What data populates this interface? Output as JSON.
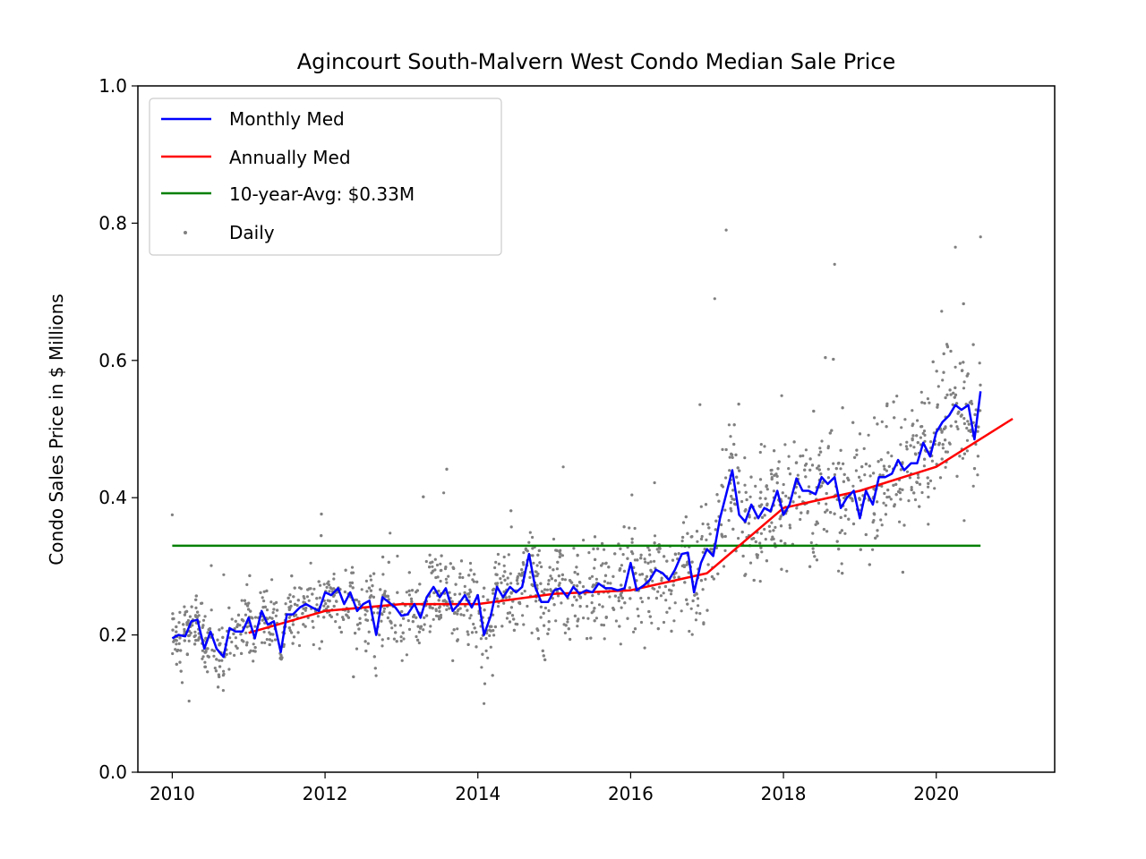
{
  "chart_data": {
    "type": "line",
    "title": "Agincourt South-Malvern West Condo Median Sale Price",
    "xlabel": "",
    "ylabel": "Condo Sales Price in $ Millions",
    "xlim": [
      2009.55,
      2021.55
    ],
    "ylim": [
      0.0,
      1.0
    ],
    "x_ticks": [
      2010,
      2012,
      2014,
      2016,
      2018,
      2020
    ],
    "x_tick_labels": [
      "2010",
      "2012",
      "2014",
      "2016",
      "2018",
      "2020"
    ],
    "y_ticks": [
      0.0,
      0.2,
      0.4,
      0.6,
      0.8,
      1.0
    ],
    "y_tick_labels": [
      "0.0",
      "0.2",
      "0.4",
      "0.6",
      "0.8",
      "1.0"
    ],
    "legend_position": "upper-left",
    "colors": {
      "monthly": "#0000ff",
      "annual": "#ff0000",
      "average": "#008000",
      "daily": "#808080"
    },
    "series": [
      {
        "name": "Monthly Med",
        "kind": "line",
        "color": "#0000ff",
        "points": [
          [
            2010.0,
            0.195
          ],
          [
            2010.08,
            0.2
          ],
          [
            2010.17,
            0.198
          ],
          [
            2010.25,
            0.22
          ],
          [
            2010.33,
            0.222
          ],
          [
            2010.42,
            0.18
          ],
          [
            2010.5,
            0.205
          ],
          [
            2010.58,
            0.18
          ],
          [
            2010.67,
            0.168
          ],
          [
            2010.75,
            0.21
          ],
          [
            2010.83,
            0.205
          ],
          [
            2010.92,
            0.205
          ],
          [
            2011.0,
            0.225
          ],
          [
            2011.08,
            0.195
          ],
          [
            2011.17,
            0.235
          ],
          [
            2011.25,
            0.215
          ],
          [
            2011.33,
            0.22
          ],
          [
            2011.42,
            0.175
          ],
          [
            2011.5,
            0.23
          ],
          [
            2011.58,
            0.23
          ],
          [
            2011.67,
            0.24
          ],
          [
            2011.75,
            0.245
          ],
          [
            2011.83,
            0.24
          ],
          [
            2011.92,
            0.235
          ],
          [
            2012.0,
            0.262
          ],
          [
            2012.08,
            0.258
          ],
          [
            2012.17,
            0.268
          ],
          [
            2012.25,
            0.245
          ],
          [
            2012.33,
            0.262
          ],
          [
            2012.42,
            0.235
          ],
          [
            2012.5,
            0.245
          ],
          [
            2012.58,
            0.25
          ],
          [
            2012.67,
            0.2
          ],
          [
            2012.75,
            0.255
          ],
          [
            2012.83,
            0.248
          ],
          [
            2012.92,
            0.24
          ],
          [
            2013.0,
            0.228
          ],
          [
            2013.08,
            0.23
          ],
          [
            2013.17,
            0.245
          ],
          [
            2013.25,
            0.225
          ],
          [
            2013.33,
            0.255
          ],
          [
            2013.42,
            0.27
          ],
          [
            2013.5,
            0.255
          ],
          [
            2013.58,
            0.268
          ],
          [
            2013.67,
            0.235
          ],
          [
            2013.75,
            0.245
          ],
          [
            2013.83,
            0.258
          ],
          [
            2013.92,
            0.24
          ],
          [
            2014.0,
            0.258
          ],
          [
            2014.08,
            0.2
          ],
          [
            2014.17,
            0.228
          ],
          [
            2014.25,
            0.27
          ],
          [
            2014.33,
            0.255
          ],
          [
            2014.42,
            0.27
          ],
          [
            2014.5,
            0.262
          ],
          [
            2014.58,
            0.27
          ],
          [
            2014.67,
            0.318
          ],
          [
            2014.75,
            0.27
          ],
          [
            2014.83,
            0.248
          ],
          [
            2014.92,
            0.248
          ],
          [
            2015.0,
            0.265
          ],
          [
            2015.08,
            0.268
          ],
          [
            2015.17,
            0.255
          ],
          [
            2015.25,
            0.27
          ],
          [
            2015.33,
            0.26
          ],
          [
            2015.42,
            0.265
          ],
          [
            2015.5,
            0.262
          ],
          [
            2015.58,
            0.275
          ],
          [
            2015.67,
            0.268
          ],
          [
            2015.75,
            0.268
          ],
          [
            2015.83,
            0.265
          ],
          [
            2015.92,
            0.268
          ],
          [
            2016.0,
            0.305
          ],
          [
            2016.08,
            0.265
          ],
          [
            2016.17,
            0.272
          ],
          [
            2016.25,
            0.28
          ],
          [
            2016.33,
            0.295
          ],
          [
            2016.42,
            0.29
          ],
          [
            2016.5,
            0.28
          ],
          [
            2016.58,
            0.295
          ],
          [
            2016.67,
            0.318
          ],
          [
            2016.75,
            0.32
          ],
          [
            2016.83,
            0.262
          ],
          [
            2016.92,
            0.305
          ],
          [
            2017.0,
            0.325
          ],
          [
            2017.08,
            0.315
          ],
          [
            2017.17,
            0.37
          ],
          [
            2017.25,
            0.405
          ],
          [
            2017.33,
            0.44
          ],
          [
            2017.42,
            0.375
          ],
          [
            2017.5,
            0.365
          ],
          [
            2017.58,
            0.39
          ],
          [
            2017.67,
            0.37
          ],
          [
            2017.75,
            0.385
          ],
          [
            2017.83,
            0.38
          ],
          [
            2017.92,
            0.41
          ],
          [
            2018.0,
            0.375
          ],
          [
            2018.08,
            0.39
          ],
          [
            2018.17,
            0.428
          ],
          [
            2018.25,
            0.41
          ],
          [
            2018.33,
            0.41
          ],
          [
            2018.42,
            0.405
          ],
          [
            2018.5,
            0.43
          ],
          [
            2018.58,
            0.42
          ],
          [
            2018.67,
            0.43
          ],
          [
            2018.75,
            0.385
          ],
          [
            2018.83,
            0.4
          ],
          [
            2018.92,
            0.41
          ],
          [
            2019.0,
            0.37
          ],
          [
            2019.08,
            0.41
          ],
          [
            2019.17,
            0.39
          ],
          [
            2019.25,
            0.43
          ],
          [
            2019.33,
            0.43
          ],
          [
            2019.42,
            0.435
          ],
          [
            2019.5,
            0.455
          ],
          [
            2019.58,
            0.44
          ],
          [
            2019.67,
            0.45
          ],
          [
            2019.75,
            0.45
          ],
          [
            2019.83,
            0.48
          ],
          [
            2019.92,
            0.46
          ],
          [
            2020.0,
            0.495
          ],
          [
            2020.08,
            0.51
          ],
          [
            2020.17,
            0.52
          ],
          [
            2020.25,
            0.535
          ],
          [
            2020.33,
            0.528
          ],
          [
            2020.42,
            0.535
          ],
          [
            2020.5,
            0.485
          ],
          [
            2020.58,
            0.555
          ]
        ]
      },
      {
        "name": "Annually Med",
        "kind": "line",
        "color": "#ff0000",
        "points": [
          [
            2011.0,
            0.203
          ],
          [
            2012.0,
            0.235
          ],
          [
            2013.0,
            0.245
          ],
          [
            2014.0,
            0.245
          ],
          [
            2015.0,
            0.26
          ],
          [
            2016.0,
            0.265
          ],
          [
            2017.0,
            0.29
          ],
          [
            2018.0,
            0.385
          ],
          [
            2019.0,
            0.41
          ],
          [
            2020.0,
            0.445
          ],
          [
            2021.0,
            0.515
          ]
        ]
      },
      {
        "name": "10-year-Avg: $0.33M",
        "kind": "line",
        "color": "#008000",
        "points": [
          [
            2010.0,
            0.33
          ],
          [
            2020.58,
            0.33
          ]
        ]
      },
      {
        "name": "Daily",
        "kind": "scatter",
        "color": "#808080",
        "x_range": [
          2010.0,
          2020.58
        ],
        "count": 2600,
        "notable_points": [
          [
            2010.0,
            0.375
          ],
          [
            2014.08,
            0.1
          ],
          [
            2017.25,
            0.79
          ],
          [
            2020.25,
            0.765
          ],
          [
            2020.58,
            0.78
          ],
          [
            2017.1,
            0.69
          ],
          [
            2018.67,
            0.74
          ]
        ]
      }
    ]
  }
}
